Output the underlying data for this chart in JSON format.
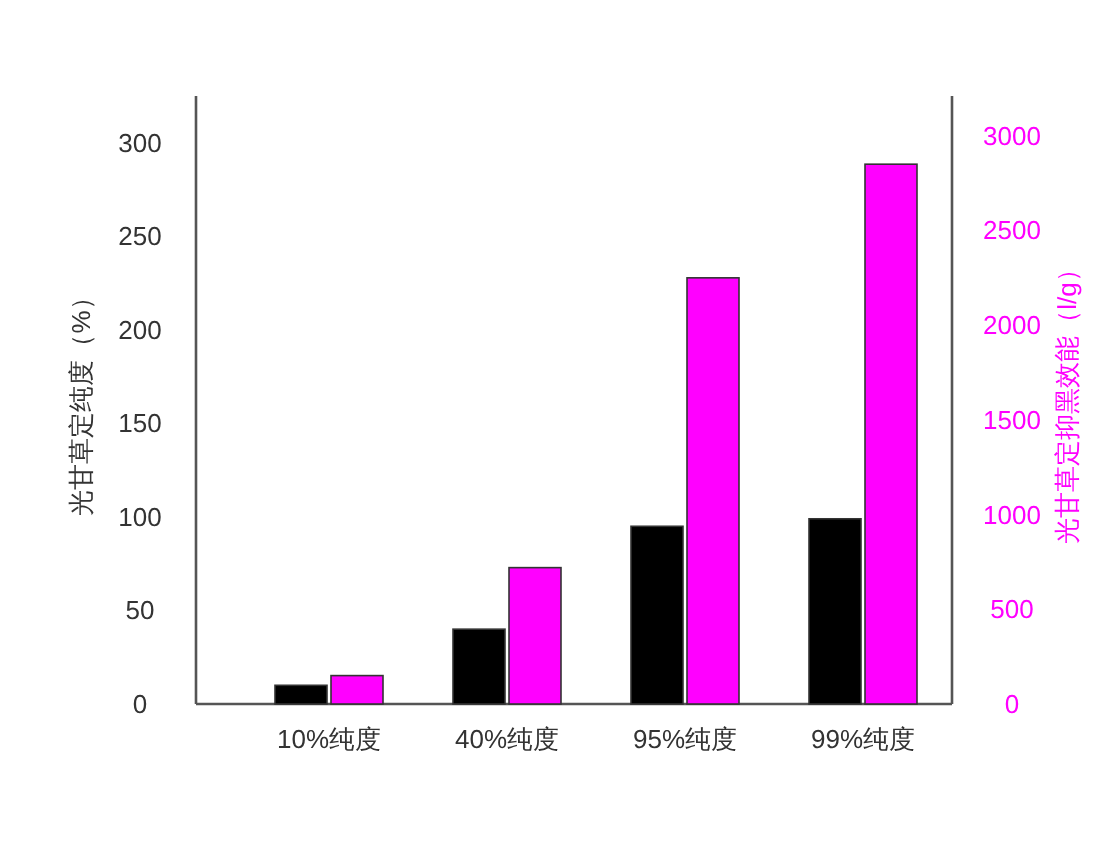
{
  "chart_data": {
    "type": "bar",
    "categories": [
      "10%纯度",
      "40%纯度",
      "95%纯度",
      "99%纯度"
    ],
    "ylabel": "光甘草定纯度（%）",
    "y2label": "光甘草定抑黑效能（l/g）",
    "series": [
      {
        "color": "#000000",
        "values": [
          10,
          40,
          95,
          99
        ]
      },
      {
        "color": "#ff00ff",
        "values": [
          150,
          720,
          2250,
          2850
        ],
        "axis": "y2"
      }
    ],
    "ylim": [
      0,
      325
    ],
    "yticks": [
      0,
      50,
      100,
      150,
      200,
      250,
      300
    ],
    "y2lim": [
      0,
      3210
    ],
    "y2ticks": [
      0,
      500,
      1000,
      1500,
      2000,
      2500,
      3000
    ]
  }
}
